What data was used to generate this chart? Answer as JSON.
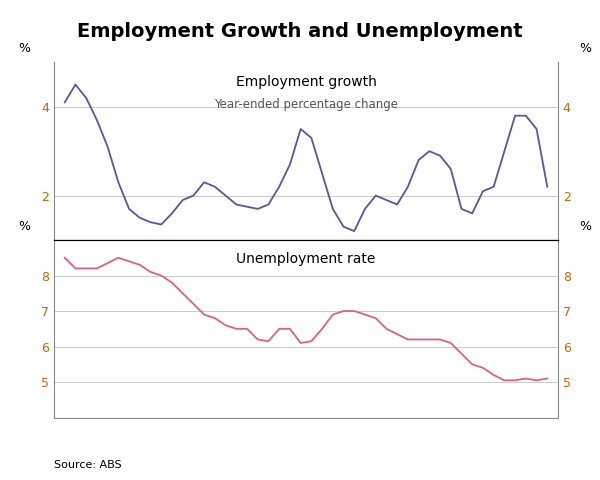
{
  "title": "Employment Growth and Unemployment",
  "source": "Source: ABS",
  "top_panel": {
    "label": "Employment growth",
    "sublabel": "Year-ended percentage change",
    "ylabel_left": "%",
    "ylabel_right": "%",
    "ylim": [
      1,
      5
    ],
    "yticks": [
      2,
      4
    ],
    "ytick_labels": [
      "2",
      "4"
    ],
    "line_color": "#5555aa",
    "data_x": [
      1994.25,
      1994.5,
      1994.75,
      1995.0,
      1995.25,
      1995.5,
      1995.75,
      1996.0,
      1996.25,
      1996.5,
      1996.75,
      1997.0,
      1997.25,
      1997.5,
      1997.75,
      1998.0,
      1998.25,
      1998.5,
      1998.75,
      1999.0,
      1999.25,
      1999.5,
      1999.75,
      2000.0,
      2000.25,
      2000.5,
      2000.75,
      2001.0,
      2001.25,
      2001.5,
      2001.75,
      2002.0,
      2002.25,
      2002.5,
      2002.75,
      2003.0,
      2003.25,
      2003.5,
      2003.75,
      2004.0,
      2004.25,
      2004.5,
      2004.75,
      2005.0,
      2005.25,
      2005.5
    ],
    "data_y": [
      4.1,
      4.5,
      4.2,
      3.7,
      3.1,
      2.3,
      1.7,
      1.5,
      1.4,
      1.35,
      1.6,
      1.9,
      2.0,
      2.3,
      2.2,
      2.0,
      1.8,
      1.75,
      1.7,
      1.8,
      2.2,
      2.7,
      3.5,
      3.3,
      2.5,
      1.7,
      1.3,
      1.2,
      1.7,
      2.0,
      1.9,
      1.8,
      2.2,
      2.8,
      3.0,
      2.9,
      2.6,
      1.7,
      1.6,
      2.1,
      2.2,
      3.0,
      3.8,
      3.8,
      3.5,
      2.2
    ]
  },
  "bottom_panel": {
    "label": "Unemployment rate",
    "ylabel_left": "%",
    "ylabel_right": "%",
    "ylim": [
      4,
      9
    ],
    "yticks": [
      5,
      6,
      7,
      8
    ],
    "ytick_labels": [
      "5",
      "6",
      "7",
      "8"
    ],
    "line_color": "#e06080",
    "data_x": [
      1994.25,
      1994.5,
      1994.75,
      1995.0,
      1995.25,
      1995.5,
      1995.75,
      1996.0,
      1996.25,
      1996.5,
      1996.75,
      1997.0,
      1997.25,
      1997.5,
      1997.75,
      1998.0,
      1998.25,
      1998.5,
      1998.75,
      1999.0,
      1999.25,
      1999.5,
      1999.75,
      2000.0,
      2000.25,
      2000.5,
      2000.75,
      2001.0,
      2001.25,
      2001.5,
      2001.75,
      2002.0,
      2002.25,
      2002.5,
      2002.75,
      2003.0,
      2003.25,
      2003.5,
      2003.75,
      2004.0,
      2004.25,
      2004.5,
      2004.75,
      2005.0,
      2005.25,
      2005.5
    ],
    "data_y": [
      8.5,
      8.2,
      8.2,
      8.2,
      8.35,
      8.5,
      8.4,
      8.3,
      8.1,
      8.0,
      7.8,
      7.5,
      7.2,
      6.9,
      6.8,
      6.6,
      6.5,
      6.5,
      6.2,
      6.15,
      6.5,
      6.5,
      6.1,
      6.15,
      6.5,
      6.9,
      7.0,
      7.0,
      6.9,
      6.8,
      6.5,
      6.35,
      6.2,
      6.2,
      6.2,
      6.2,
      6.1,
      5.8,
      5.5,
      5.4,
      5.2,
      5.05,
      5.05,
      5.1,
      5.05,
      5.1
    ]
  },
  "xlim": [
    1994.0,
    2005.75
  ],
  "xticks": [
    1995,
    1997,
    1999,
    2001,
    2003,
    2005
  ],
  "tick_color": "#cc6600",
  "background_color": "#ffffff",
  "grid_color": "#cccccc",
  "spine_color": "#888888"
}
